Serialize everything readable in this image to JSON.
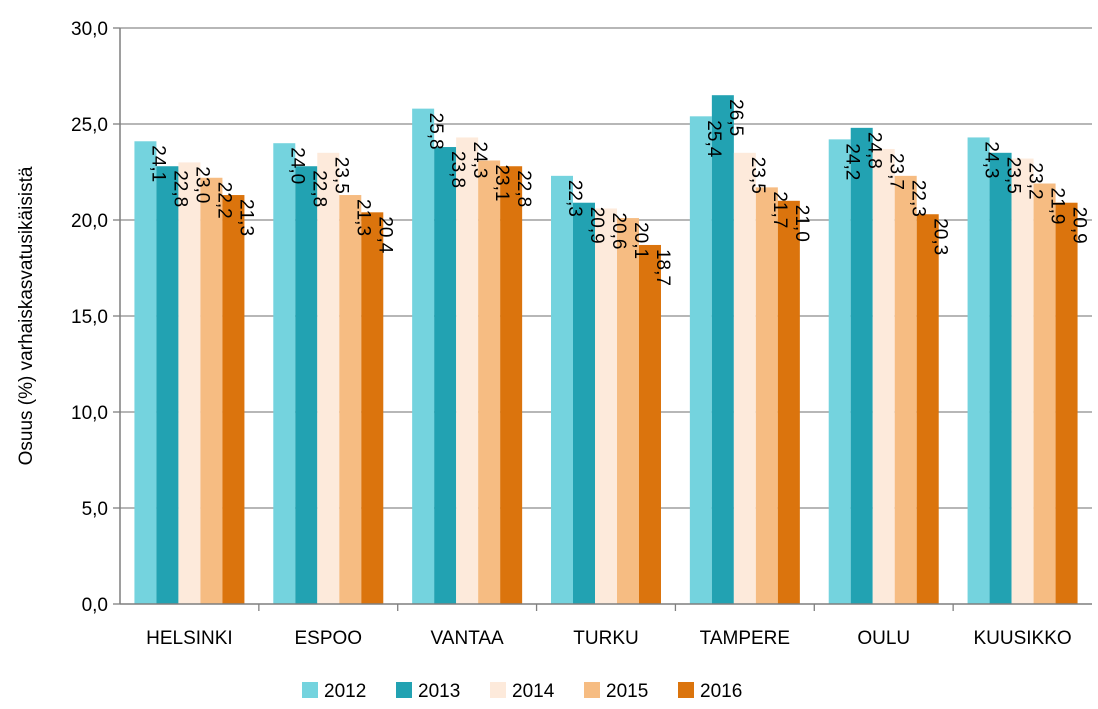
{
  "chart_data": {
    "type": "bar",
    "title": "",
    "xlabel": "",
    "ylabel": "Osuus (%) varhaiskasvatusikäisistä",
    "ylim": [
      0,
      30
    ],
    "yticks": [
      "0,0",
      "5,0",
      "10,0",
      "15,0",
      "20,0",
      "25,0",
      "30,0"
    ],
    "grid": true,
    "legend_position": "bottom",
    "categories": [
      "HELSINKI",
      "ESPOO",
      "VANTAA",
      "TURKU",
      "TAMPERE",
      "OULU",
      "KUUSIKKO"
    ],
    "series": [
      {
        "name": "2012",
        "color": "#74D3DE",
        "values": [
          24.1,
          24.0,
          25.8,
          22.3,
          25.4,
          24.2,
          24.3
        ],
        "labels": [
          "24,1",
          "24,0",
          "25,8",
          "22,3",
          "25,4",
          "24,2",
          "24,3"
        ]
      },
      {
        "name": "2013",
        "color": "#22A2B2",
        "values": [
          22.8,
          22.8,
          23.8,
          20.9,
          26.5,
          24.8,
          23.5
        ],
        "labels": [
          "22,8",
          "22,8",
          "23,8",
          "20,9",
          "26,5",
          "24,8",
          "23,5"
        ]
      },
      {
        "name": "2014",
        "color": "#FDEADB",
        "values": [
          23.0,
          23.5,
          24.3,
          20.6,
          23.5,
          23.7,
          23.2
        ],
        "labels": [
          "23,0",
          "23,5",
          "24,3",
          "20,6",
          "23,5",
          "23,7",
          "23,2"
        ]
      },
      {
        "name": "2015",
        "color": "#F6BC82",
        "values": [
          22.2,
          21.3,
          23.1,
          20.1,
          21.7,
          22.3,
          21.9
        ],
        "labels": [
          "22,2",
          "21,3",
          "23,1",
          "20,1",
          "21,7",
          "22,3",
          "21,9"
        ]
      },
      {
        "name": "2016",
        "color": "#DB740D",
        "values": [
          21.3,
          20.4,
          22.8,
          18.7,
          21.0,
          20.3,
          20.9
        ],
        "labels": [
          "21,3",
          "20,4",
          "22,8",
          "18,7",
          "21,0",
          "20,3",
          "20,9"
        ]
      }
    ]
  }
}
